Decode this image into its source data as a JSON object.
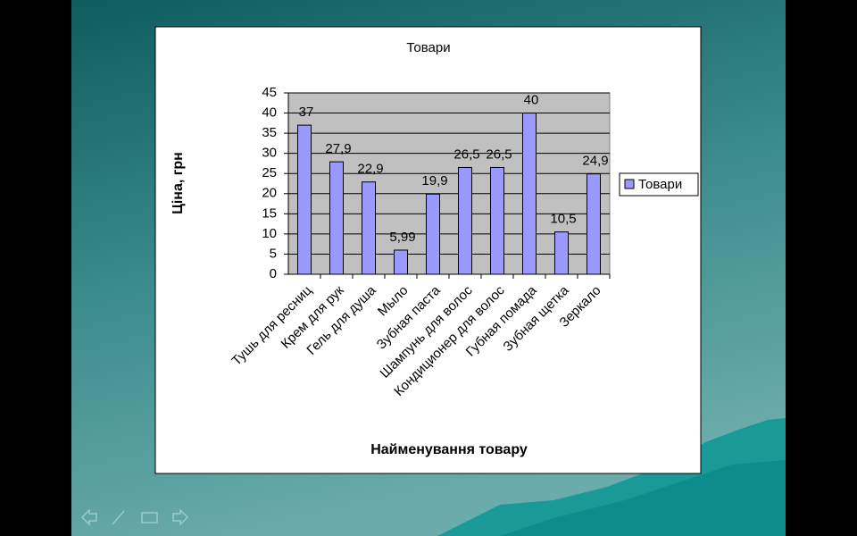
{
  "chart_data": {
    "type": "bar",
    "title": "Товари",
    "x_label": "Найменування товару",
    "y_label": "Ціна, грн",
    "categories": [
      "Тушь для ресниц",
      "Крем для рук",
      "Гель для душа",
      "Мыло",
      "Зубная паста",
      "Шампунь для волос",
      "Кондиционер для волос",
      "Губная помада",
      "Зубная щетка",
      "Зеркало"
    ],
    "series": [
      {
        "name": "Товари",
        "color": "#9999ff",
        "values": [
          37,
          27.9,
          22.9,
          5.99,
          19.9,
          26.5,
          26.5,
          40,
          10.5,
          24.9
        ],
        "value_labels": [
          "37",
          "27,9",
          "22,9",
          "5,99",
          "19,9",
          "26,5",
          "26,5",
          "40",
          "10,5",
          "24,9"
        ]
      }
    ],
    "ylim": [
      0,
      45
    ],
    "yticks": [
      0,
      5,
      10,
      15,
      20,
      25,
      30,
      35,
      40,
      45
    ],
    "grid": true,
    "legend": "right"
  }
}
